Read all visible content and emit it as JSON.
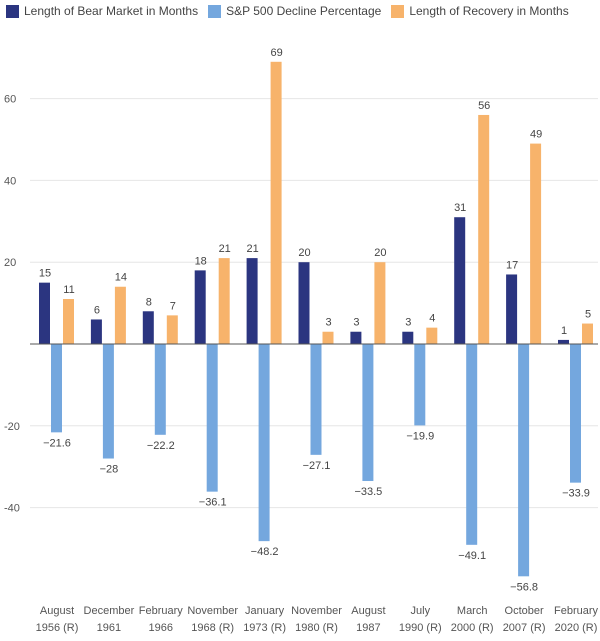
{
  "chart_data": {
    "type": "bar",
    "categories": [
      [
        "August",
        "1956 (R)"
      ],
      [
        "December",
        "1961"
      ],
      [
        "February",
        "1966"
      ],
      [
        "November",
        "1968 (R)"
      ],
      [
        "January",
        "1973 (R)"
      ],
      [
        "November",
        "1980 (R)"
      ],
      [
        "August",
        "1987"
      ],
      [
        "July",
        "1990 (R)"
      ],
      [
        "March",
        "2000 (R)"
      ],
      [
        "October",
        "2007 (R)"
      ],
      [
        "February",
        "2020 (R)"
      ]
    ],
    "series": [
      {
        "name": "Length of Bear Market in Months",
        "color": "#2b3580",
        "values": [
          15,
          6,
          8,
          18,
          21,
          20,
          3,
          3,
          31,
          17,
          1
        ]
      },
      {
        "name": "S&P 500 Decline Percentage",
        "color": "#74a7de",
        "values": [
          -21.6,
          -28,
          -22.2,
          -36.1,
          -48.2,
          -27.1,
          -33.5,
          -19.9,
          -49.1,
          -56.8,
          -33.9
        ]
      },
      {
        "name": "Length of Recovery in Months",
        "color": "#f7b36b",
        "values": [
          11,
          14,
          7,
          21,
          69,
          3,
          20,
          4,
          56,
          49,
          5
        ]
      }
    ],
    "yticks": [
      60,
      40,
      20,
      -20,
      -40
    ],
    "ylim": [
      -58,
      76
    ],
    "grid": true,
    "legend": "top-left",
    "title": "",
    "xlabel": "",
    "ylabel": ""
  }
}
